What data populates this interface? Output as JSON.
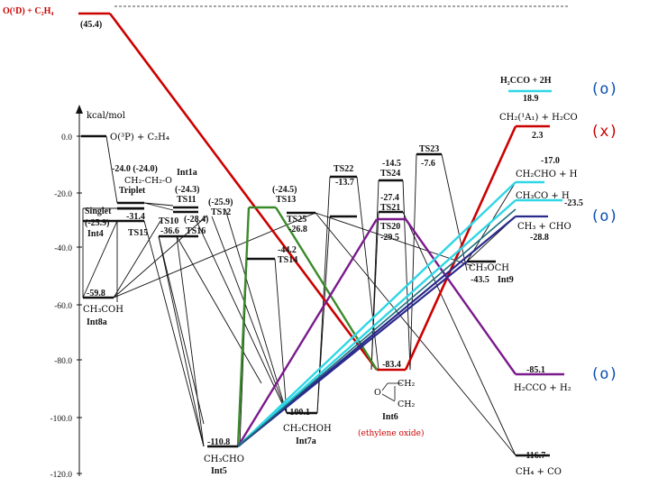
{
  "axis": {
    "unit": "kcal/mol",
    "ticks": [
      {
        "label": "0.0",
        "value": 0
      },
      {
        "label": "-20.0",
        "value": -20
      },
      {
        "label": "-40.0",
        "value": -40
      },
      {
        "label": "-60.0",
        "value": -60
      },
      {
        "label": "-80.0",
        "value": -80
      },
      {
        "label": "-100.0",
        "value": -100
      },
      {
        "label": "-120.0",
        "value": -120
      }
    ]
  },
  "reactant": {
    "label": "O(¹D) + C₂H₄",
    "value": "(45.4)",
    "color": "#cc0000"
  },
  "top_product": {
    "label": "H₂CCO + 2H",
    "value": "18.9",
    "color": "#00bcd4"
  },
  "labels": {
    "o3p": "O(³P) + C₂H₄",
    "int1a_val": "-24.0 (-24.0)",
    "int1a": "Int1a",
    "ch2ch2o": "CH₂-CH₂-O",
    "triplet": "Triplet",
    "singlet": "Singlet",
    "int4_val": "(-25.9)",
    "int4": "Int4",
    "ts11_val": "(-24.3)",
    "ts11": "TS11",
    "ts12_val": "(-25.9)",
    "ts12": "TS12",
    "ts15_val": "-31.4",
    "ts15": "TS15",
    "ts10": "TS10",
    "ts10_val": "-36.6",
    "ts16_val": "(-28.4)",
    "ts16": "TS16",
    "ts13_val": "(-24.5)",
    "ts13": "TS13",
    "ts25": "TS25",
    "ts25_val": "-26.8",
    "ts14_val": "-44.2",
    "ts14": "TS14",
    "ts22": "TS22",
    "ts22_val": "-13.7",
    "ts24_val": "-14.5",
    "ts24": "TS24",
    "ts23": "TS23",
    "ts23_val": "-7.6",
    "ts21_val": "-27.4",
    "ts21": "TS21",
    "ts20": "TS20",
    "ts20_val": "-29.5",
    "int8a_val": "-59.8",
    "ch3coh": "CH₃COH",
    "int8a": "Int8a",
    "int5_val": "-110.8",
    "ch3cho": "CH₃CHO",
    "int5": "Int5",
    "int7a_val": "-100.1",
    "ch2choh": "CH₂CHOH",
    "int7a": "Int7a",
    "int6_val": "-83.4",
    "int6": "Int6",
    "ethylene_oxide": "(ethylene oxide)",
    "ch2_h2co": "CH₂(¹A₁) + H₂CO",
    "ch2_h2co_val": "2.3",
    "ch2cho_h_val": "-17.0",
    "ch2cho_h": "CH₂CHO + H",
    "ch3co_h": "CH₃CO + H",
    "ch3co_h_val": "-23.5",
    "ch3_cho": "CH₃ + CHO",
    "ch3_cho_val": "-28.8",
    "ch3och": "CH₃OCH",
    "int9_val": "-43.5",
    "int9": "Int9",
    "h2cco_h2_val": "-85.1",
    "h2cco_h2": "H₂CCO + H₂",
    "ch4_co_val": "-116.7",
    "ch4_co": "CH₄ + CO"
  },
  "markers": [
    {
      "text": "(o)",
      "color": "#0b4fb3"
    },
    {
      "text": "(x)",
      "color": "#cc0000"
    },
    {
      "text": "(o)",
      "color": "#0b4fb3"
    },
    {
      "text": "(o)",
      "color": "#0b4fb3"
    }
  ],
  "colors": {
    "red": "#cc0000",
    "green": "#3a8a2a",
    "purple": "#7a1a8c",
    "cyan": "#2fd6e6",
    "blue": "#2a2a8c",
    "black": "#111111"
  }
}
